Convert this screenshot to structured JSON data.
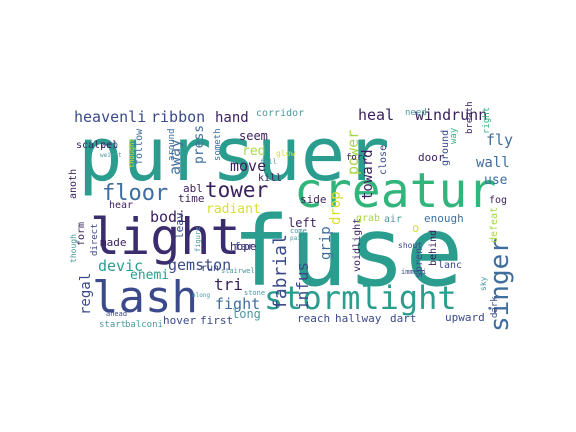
{
  "cloud": {
    "words": [
      {
        "text": "pursuer",
        "color": "#2a9d8f"
      },
      {
        "text": "fuse",
        "color": "#2a9d8f"
      },
      {
        "text": "creatur",
        "color": "#31b57b"
      },
      {
        "text": "light",
        "color": "#3b2c6e"
      },
      {
        "text": "lash",
        "color": "#3b4a8a"
      },
      {
        "text": "stormlight",
        "color": "#2a9d8f"
      },
      {
        "text": "singer",
        "color": "#3f6e9e"
      },
      {
        "text": "tower",
        "color": "#3a1f5d"
      },
      {
        "text": "floor",
        "color": "#3f6e9e"
      },
      {
        "text": "fabrial",
        "color": "#3b4a8a"
      },
      {
        "text": "infus",
        "color": "#3b4a8a"
      },
      {
        "text": "heavenli",
        "color": "#3b4a8a"
      },
      {
        "text": "ribbon",
        "color": "#3b4a8a"
      },
      {
        "text": "hand",
        "color": "#3a1f5d"
      },
      {
        "text": "corridor",
        "color": "#4a98a0"
      },
      {
        "text": "heal",
        "color": "#3a1f5d"
      },
      {
        "text": "windrunn",
        "color": "#3a1f5d"
      },
      {
        "text": "need",
        "color": "#4a98a0"
      },
      {
        "text": "fly",
        "color": "#3f6e9e"
      },
      {
        "text": "wall",
        "color": "#3f6e9e"
      },
      {
        "text": "use",
        "color": "#3f6e9e"
      },
      {
        "text": "away",
        "color": "#3f6e9e"
      },
      {
        "text": "move",
        "color": "#3a1f5d"
      },
      {
        "text": "red",
        "color": "#a8d74a"
      },
      {
        "text": "power",
        "color": "#a8d74a"
      },
      {
        "text": "radiant",
        "color": "#d8e030"
      },
      {
        "text": "bodi",
        "color": "#3a1f5d"
      },
      {
        "text": "gemston",
        "color": "#3b4a8a"
      },
      {
        "text": "devic",
        "color": "#2a9d8f"
      },
      {
        "text": "enemi",
        "color": "#2a9d8f"
      },
      {
        "text": "tri",
        "color": "#3a1f5d"
      },
      {
        "text": "fight",
        "color": "#3f6e9e"
      },
      {
        "text": "regal",
        "color": "#3b4a8a"
      },
      {
        "text": "toward",
        "color": "#3a1f5d"
      },
      {
        "text": "drop",
        "color": "#d8e030"
      },
      {
        "text": "grip",
        "color": "#3f6e9e"
      },
      {
        "text": "voidlight",
        "color": "#3a1f5d"
      },
      {
        "text": "o",
        "color": "#d8e030"
      },
      {
        "text": "enough",
        "color": "#3f6e9e"
      },
      {
        "text": "grab",
        "color": "#a8d74a"
      },
      {
        "text": "air",
        "color": "#4a98a0"
      },
      {
        "text": "left",
        "color": "#3a1f5d"
      },
      {
        "text": "side",
        "color": "#3a1f5d"
      },
      {
        "text": "long",
        "color": "#4a98a0"
      },
      {
        "text": "reach",
        "color": "#3b4a8a"
      },
      {
        "text": "hallway",
        "color": "#3b4a8a"
      },
      {
        "text": "dart",
        "color": "#3b4a8a"
      },
      {
        "text": "upward",
        "color": "#3b4a8a"
      },
      {
        "text": "hover",
        "color": "#3b4a8a"
      },
      {
        "text": "first",
        "color": "#3b4a8a"
      },
      {
        "text": "start",
        "color": "#4a98a0"
      },
      {
        "text": "balconi",
        "color": "#4a98a0"
      },
      {
        "text": "seem",
        "color": "#3a1f5d"
      },
      {
        "text": "press",
        "color": "#3f6e9e"
      },
      {
        "text": "someth",
        "color": "#3f6e9e"
      },
      {
        "text": "kill",
        "color": "#3a1f5d"
      },
      {
        "text": "abl",
        "color": "#3a1f5d"
      },
      {
        "text": "time",
        "color": "#3a1f5d"
      },
      {
        "text": "follow",
        "color": "#3f6e9e"
      },
      {
        "text": "around",
        "color": "#3f6e9e"
      },
      {
        "text": "zip",
        "color": "#3f6e9e"
      },
      {
        "text": "weight",
        "color": "#4a98a0"
      },
      {
        "text": "scalpel",
        "color": "#3a1f5d"
      },
      {
        "text": "anoth",
        "color": "#3a1f5d"
      },
      {
        "text": "form",
        "color": "#3a1f5d"
      },
      {
        "text": "made",
        "color": "#3a1f5d"
      },
      {
        "text": "hear",
        "color": "#3a1f5d"
      },
      {
        "text": "leav",
        "color": "#3b4a8a"
      },
      {
        "text": "hope",
        "color": "#3a1f5d"
      },
      {
        "text": "far",
        "color": "#3b4a8a"
      },
      {
        "text": "run",
        "color": "#3b4a8a"
      },
      {
        "text": "stairwel",
        "color": "#4a98a0"
      },
      {
        "text": "stone",
        "color": "#4a98a0"
      },
      {
        "text": "direct",
        "color": "#3b4a8a"
      },
      {
        "text": "figure",
        "color": "#4a98a0"
      },
      {
        "text": "ahead",
        "color": "#3b4a8a"
      },
      {
        "text": "thought",
        "color": "#d8e030"
      },
      {
        "text": "though",
        "color": "#4a98a0"
      },
      {
        "text": "along",
        "color": "#4a98a0"
      },
      {
        "text": "fall",
        "color": "#4a98a0"
      },
      {
        "text": "glow",
        "color": "#d8e030"
      },
      {
        "text": "come",
        "color": "#4a98a0"
      },
      {
        "text": "pain",
        "color": "#4a98a0"
      },
      {
        "text": "forc",
        "color": "#3a1f5d"
      },
      {
        "text": "close",
        "color": "#3b4a8a"
      },
      {
        "text": "door",
        "color": "#3a1f5d"
      },
      {
        "text": "ground",
        "color": "#3b4a8a"
      },
      {
        "text": "way",
        "color": "#31b57b"
      },
      {
        "text": "breath",
        "color": "#3a1f5d"
      },
      {
        "text": "right",
        "color": "#31b57b"
      },
      {
        "text": "fog",
        "color": "#3a1f5d"
      },
      {
        "text": "defeat",
        "color": "#a8d74a"
      },
      {
        "text": "behind",
        "color": "#3a1f5d"
      },
      {
        "text": "lanc",
        "color": "#3b4a8a"
      },
      {
        "text": "spren",
        "color": "#3b4a8a"
      },
      {
        "text": "shout",
        "color": "#3b4a8a"
      },
      {
        "text": "immedi",
        "color": "#3b4a8a"
      },
      {
        "text": "sky",
        "color": "#4a98a0"
      },
      {
        "text": "dark",
        "color": "#3b4a8a"
      }
    ]
  }
}
